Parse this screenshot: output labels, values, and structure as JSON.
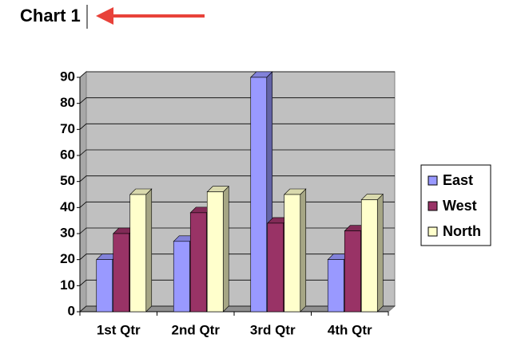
{
  "chart_data": {
    "type": "bar3d",
    "title": "Chart 1",
    "categories": [
      "1st Qtr",
      "2nd Qtr",
      "3rd Qtr",
      "4th Qtr"
    ],
    "series": [
      {
        "name": "East",
        "color": "#9999ff",
        "values": [
          20,
          27,
          90,
          20
        ]
      },
      {
        "name": "West",
        "color": "#993366",
        "values": [
          30,
          38,
          34,
          31
        ]
      },
      {
        "name": "North",
        "color": "#ffffcc",
        "values": [
          45,
          46,
          45,
          43
        ]
      }
    ],
    "ylim": [
      0,
      90
    ],
    "yticks": [
      0,
      10,
      20,
      30,
      40,
      50,
      60,
      70,
      80,
      90
    ],
    "grid": true,
    "legend": "right"
  }
}
